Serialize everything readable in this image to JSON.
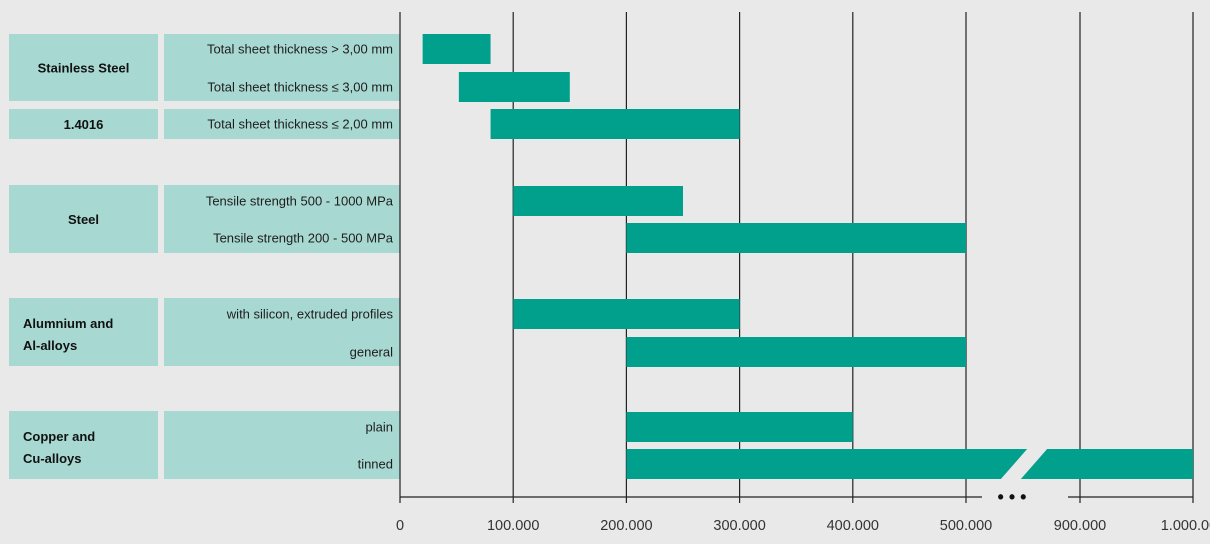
{
  "chart_data": {
    "type": "bar",
    "orientation": "horizontal",
    "title": "",
    "xlabel": "",
    "ylabel": "",
    "xlim": [
      0,
      1000000
    ],
    "axis_break": {
      "from": 500000,
      "to": 900000,
      "symbol": "• • •"
    },
    "grid": "vertical",
    "bar_color": "#00a08c",
    "label_fill_color": "#a8d8d2",
    "x_ticks": [
      {
        "value": 0,
        "label": "0"
      },
      {
        "value": 100000,
        "label": "100.000"
      },
      {
        "value": 200000,
        "label": "200.000"
      },
      {
        "value": 300000,
        "label": "300.000"
      },
      {
        "value": 400000,
        "label": "400.000"
      },
      {
        "value": 500000,
        "label": "500.000"
      },
      {
        "value": 900000,
        "label": "900.000"
      },
      {
        "value": 1000000,
        "label": "1.000.000"
      }
    ],
    "groups": [
      {
        "name": "Stainless Steel",
        "rows": [
          {
            "category": "Total sheet thickness > 3,00 mm",
            "start": 20000,
            "end": 80000
          },
          {
            "category": "Total sheet thickness ≤ 3,00 mm",
            "start": 52000,
            "end": 150000
          }
        ]
      },
      {
        "name": "1.4016",
        "rows": [
          {
            "category": "Total sheet thickness ≤ 2,00 mm",
            "start": 80000,
            "end": 300000
          }
        ]
      },
      {
        "name": "Steel",
        "rows": [
          {
            "category": "Tensile strength 500 - 1000 MPa",
            "start": 100000,
            "end": 250000
          },
          {
            "category": "Tensile strength 200 - 500 MPa",
            "start": 200000,
            "end": 500000
          }
        ]
      },
      {
        "name": "Alumnium and Al-alloys",
        "rows": [
          {
            "category": "with silicon, extruded profiles",
            "start": 100000,
            "end": 300000
          },
          {
            "category": "general",
            "start": 200000,
            "end": 500000
          }
        ]
      },
      {
        "name": "Copper and Cu-alloys",
        "rows": [
          {
            "category": "plain",
            "start": 200000,
            "end": 400000
          },
          {
            "category": "tinned",
            "start": 200000,
            "end": 1000000
          }
        ]
      }
    ]
  }
}
